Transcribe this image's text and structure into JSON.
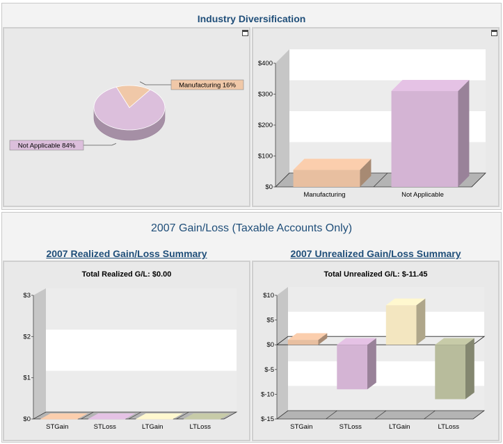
{
  "top": {
    "title": "Industry Diversification",
    "pie_panel": {
      "maximize_icon": "maximize-icon"
    },
    "bar_panel": {
      "maximize_icon": "maximize-icon"
    }
  },
  "bottom": {
    "title": "2007 Gain/Loss (Taxable Accounts Only)",
    "realized": {
      "heading": "2007 Realized Gain/Loss Summary",
      "total": "Total Realized G/L: $0.00"
    },
    "unrealized": {
      "heading": "2007 Unrealized Gain/Loss Summary",
      "total": "Total Unrealized G/L: $-11.45"
    }
  },
  "colors": {
    "peach": "#e8bfa0",
    "lilac": "#d4b4d4",
    "cream": "#f3e6c0",
    "olive": "#b8bc9c",
    "heading": "#1f4e79"
  },
  "chart_data": [
    {
      "type": "pie",
      "title": "",
      "slices": [
        {
          "label": "Manufacturing 16%",
          "value": 16,
          "color": "#f0c8a8"
        },
        {
          "label": "Not Applicable 84%",
          "value": 84,
          "color": "#dcbfdc"
        }
      ]
    },
    {
      "type": "bar",
      "title": "",
      "categories": [
        "Manufacturing",
        "Not Applicable"
      ],
      "values": [
        55,
        310
      ],
      "colors": [
        "#e8bfa0",
        "#d4b4d4"
      ],
      "ylim": [
        0,
        400
      ],
      "yticks": [
        "$0",
        "$100",
        "$200",
        "$300",
        "$400"
      ]
    },
    {
      "type": "bar",
      "title": "",
      "categories": [
        "STGain",
        "STLoss",
        "LTGain",
        "LTLoss"
      ],
      "values": [
        0,
        0,
        0,
        0
      ],
      "colors": [
        "#e8bfa0",
        "#d4b4d4",
        "#f3e6c0",
        "#b8bc9c"
      ],
      "ylim": [
        0,
        3
      ],
      "yticks": [
        "$0",
        "$1",
        "$2",
        "$3"
      ]
    },
    {
      "type": "bar",
      "title": "",
      "categories": [
        "STGain",
        "STLoss",
        "LTGain",
        "LTLoss"
      ],
      "values": [
        1,
        -9,
        8,
        -11
      ],
      "colors": [
        "#e8bfa0",
        "#d4b4d4",
        "#f3e6c0",
        "#b8bc9c"
      ],
      "ylim": [
        -15,
        10
      ],
      "yticks": [
        "$-15",
        "$-10",
        "$-5",
        "$0",
        "$5",
        "$10"
      ]
    }
  ]
}
